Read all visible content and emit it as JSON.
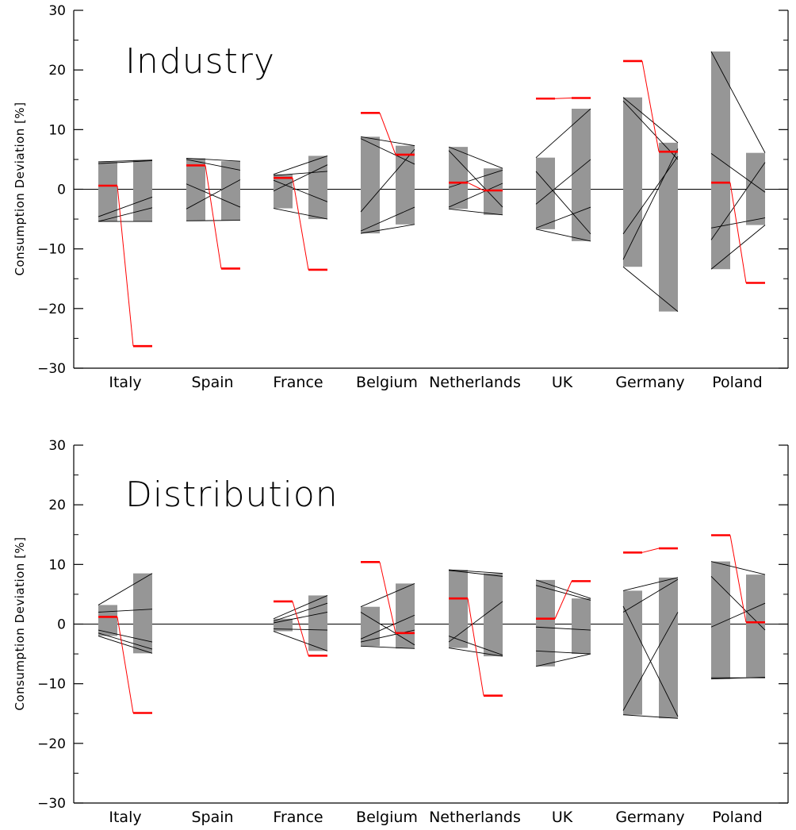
{
  "chart_data": [
    {
      "type": "bar",
      "title": "Industry",
      "xlabel": "",
      "ylabel": "Consumption Deviation [%]",
      "ylim": [
        -30,
        30
      ],
      "yticks": [
        -30,
        -20,
        -10,
        0,
        10,
        20,
        30
      ],
      "categories": [
        "Italy",
        "Spain",
        "France",
        "Belgium",
        "Netherlands",
        "UK",
        "Germany",
        "Poland"
      ],
      "left_bar_ranges": [
        [
          -5.4,
          4.6
        ],
        [
          -5.3,
          5.2
        ],
        [
          -3.2,
          2.5
        ],
        [
          -7.4,
          8.8
        ],
        [
          -3.3,
          7.1
        ],
        [
          -6.7,
          5.3
        ],
        [
          -13.0,
          15.4
        ],
        [
          -13.4,
          23.1
        ]
      ],
      "right_bar_ranges": [
        [
          -5.4,
          4.9
        ],
        [
          -5.2,
          4.7
        ],
        [
          -5.0,
          5.6
        ],
        [
          -5.9,
          7.3
        ],
        [
          -4.3,
          3.5
        ],
        [
          -8.7,
          13.5
        ],
        [
          -20.5,
          7.8
        ],
        [
          -6.0,
          6.1
        ]
      ],
      "red_marker_left": [
        0.6,
        4.0,
        1.9,
        12.8,
        1.1,
        15.2,
        21.5,
        1.1
      ],
      "red_marker_right": [
        -26.3,
        -13.3,
        -13.5,
        5.8,
        -0.2,
        15.3,
        6.3,
        -15.7
      ],
      "member_lines": [
        [
          [
            4.3,
            4.8
          ],
          [
            -4.6,
            -1.3
          ],
          [
            -5.4,
            -3.1
          ]
        ],
        [
          [
            5.0,
            3.2
          ],
          [
            0.9,
            -3.0
          ],
          [
            -3.3,
            1.6
          ]
        ],
        [
          [
            2.3,
            3.0
          ],
          [
            -0.3,
            4.1
          ],
          [
            1.5,
            -2.1
          ]
        ],
        [
          [
            8.5,
            4.2
          ],
          [
            -3.8,
            6.7
          ],
          [
            -7.0,
            -3.0
          ]
        ],
        [
          [
            6.5,
            -3.0
          ],
          [
            0.3,
            3.2
          ],
          [
            -3.0,
            1.0
          ]
        ],
        [
          [
            -2.5,
            5.0
          ],
          [
            -6.5,
            -3.0
          ],
          [
            3.0,
            -7.5
          ]
        ],
        [
          [
            14.8,
            5.0
          ],
          [
            -7.5,
            5.5
          ],
          [
            -11.8,
            6.8
          ]
        ],
        [
          [
            -8.5,
            4.5
          ],
          [
            6.0,
            -0.5
          ],
          [
            -6.5,
            -4.8
          ]
        ]
      ]
    },
    {
      "type": "bar",
      "title": "Distribution",
      "xlabel": "",
      "ylabel": "Consumption Deviation [%]",
      "ylim": [
        -30,
        30
      ],
      "yticks": [
        -30,
        -20,
        -10,
        0,
        10,
        20,
        30
      ],
      "categories": [
        "Italy",
        "Spain",
        "France",
        "Belgium",
        "Netherlands",
        "UK",
        "Germany",
        "Poland"
      ],
      "left_bar_ranges": [
        [
          -2.0,
          3.2
        ],
        null,
        [
          -1.2,
          0.9
        ],
        [
          -3.7,
          2.9
        ],
        [
          -4.0,
          9.1
        ],
        [
          -7.1,
          7.4
        ],
        [
          -15.2,
          5.6
        ],
        [
          -9.2,
          10.5
        ]
      ],
      "right_bar_ranges": [
        [
          -4.9,
          8.5
        ],
        null,
        [
          -4.5,
          4.8
        ],
        [
          -4.1,
          6.8
        ],
        [
          -5.4,
          8.5
        ],
        [
          -5.0,
          4.3
        ],
        [
          -15.8,
          7.8
        ],
        [
          -8.9,
          8.3
        ]
      ],
      "red_marker_left": [
        1.2,
        null,
        3.8,
        10.4,
        4.3,
        0.9,
        12.0,
        14.9
      ],
      "red_marker_right": [
        -14.9,
        null,
        -5.3,
        -1.5,
        -12.0,
        7.2,
        12.7,
        0.3
      ],
      "member_lines": [
        [
          [
            2.0,
            2.5
          ],
          [
            -1.5,
            -4.2
          ],
          [
            -1.0,
            -3.0
          ]
        ],
        [],
        [
          [
            0.5,
            3.5
          ],
          [
            -0.8,
            -1.0
          ],
          [
            0.2,
            2.0
          ]
        ],
        [
          [
            2.0,
            -3.5
          ],
          [
            -2.5,
            1.5
          ],
          [
            -3.0,
            -1.0
          ]
        ],
        [
          [
            9.0,
            8.0
          ],
          [
            -3.0,
            3.8
          ],
          [
            -2.0,
            -5.2
          ]
        ],
        [
          [
            6.5,
            4.0
          ],
          [
            -4.5,
            -5.0
          ],
          [
            -0.5,
            -1.0
          ]
        ],
        [
          [
            2.0,
            7.5
          ],
          [
            -14.5,
            2.0
          ],
          [
            3.0,
            -15.5
          ]
        ],
        [
          [
            -0.5,
            3.5
          ],
          [
            -9.0,
            -9.0
          ],
          [
            8.0,
            -1.0
          ]
        ]
      ]
    }
  ]
}
